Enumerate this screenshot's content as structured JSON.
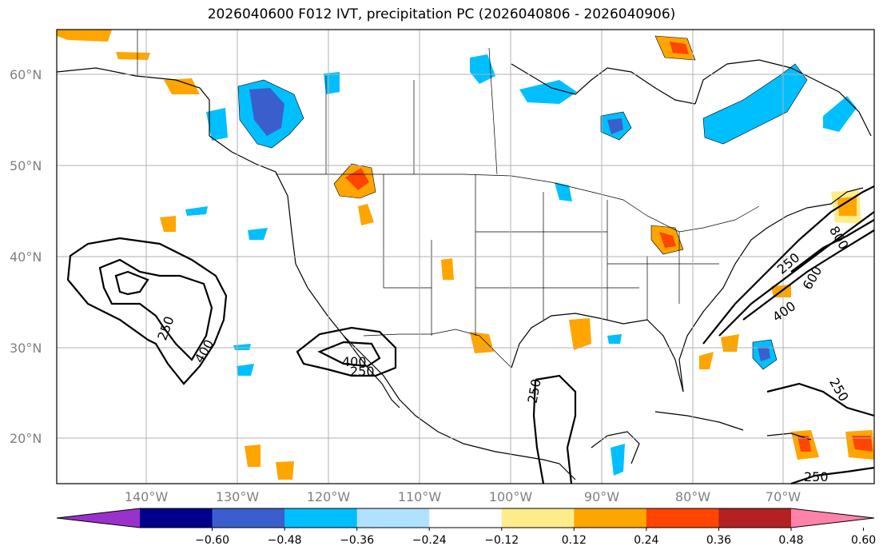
{
  "title": "2026040600 F012 IVT, precipitation PC (2026040806 - 2026040906)",
  "lat_labels": [
    "60°N",
    "50°N",
    "40°N",
    "30°N",
    "20°N"
  ],
  "lon_labels": [
    "140°W",
    "130°W",
    "120°W",
    "110°W",
    "100°W",
    "90°W",
    "80°W",
    "70°W"
  ],
  "ivt_contour_labels": [
    "250",
    "400",
    "400",
    "250",
    "250",
    "250",
    "400",
    "600",
    "800",
    "250",
    "250"
  ],
  "colorbar": {
    "ticks": [
      "−0.60",
      "−0.48",
      "−0.36",
      "−0.24",
      "−0.12",
      "0.12",
      "0.24",
      "0.36",
      "0.48",
      "0.60"
    ],
    "colors": [
      "#9932cc",
      "#00008b",
      "#3a5fcd",
      "#00bfff",
      "#b0e2ff",
      "#ffffff",
      "#ffec8b",
      "#ffa500",
      "#ff4500",
      "#b22222",
      "#ff82ab"
    ]
  },
  "colors": {
    "positive_light": "#ffec8b",
    "positive_mid": "#ffa500",
    "positive_high": "#ff4500",
    "negative_light": "#b0e2ff",
    "negative_mid": "#00bfff",
    "negative_high": "#3a5fcd",
    "grid": "#b0b0b0"
  }
}
